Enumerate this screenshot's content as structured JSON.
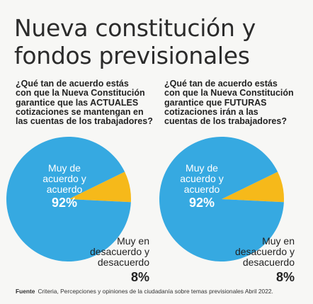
{
  "title": [
    "Nueva constitución y",
    "fondos previsionales"
  ],
  "colors": {
    "agree": "#36a9e1",
    "disagree": "#f6b91a"
  },
  "chart_data": [
    {
      "type": "pie",
      "question": [
        "¿Qué tan de acuerdo estás",
        "con que la Nueva Constitución",
        "garantice que las ACTUALES",
        "cotizaciones se mantengan en",
        "las cuentas de los trabajadores?"
      ],
      "slices": [
        {
          "label": [
            "Muy de",
            "acuerdo y",
            "acuerdo"
          ],
          "value": 92,
          "display": "92%"
        },
        {
          "label": [
            "Muy en",
            "desacuerdo y",
            "desacuerdo"
          ],
          "value": 8,
          "display": "8%"
        }
      ]
    },
    {
      "type": "pie",
      "question": [
        "¿Qué tan de acuerdo estás",
        "con que la Nueva Constitución",
        "garantice que FUTURAS",
        "cotizaciones irán a las",
        "cuentas de los trabajadores?"
      ],
      "slices": [
        {
          "label": [
            "Muy de",
            "acuerdo y",
            "acuerdo"
          ],
          "value": 92,
          "display": "92%"
        },
        {
          "label": [
            "Muy en",
            "desacuerdo y",
            "desacuerdo"
          ],
          "value": 8,
          "display": "8%"
        }
      ]
    }
  ],
  "source": {
    "label": "Fuente",
    "text": "Criteria, Percepciones y opiniones de la ciudadanía sobre temas previsionales Abril 2022."
  }
}
